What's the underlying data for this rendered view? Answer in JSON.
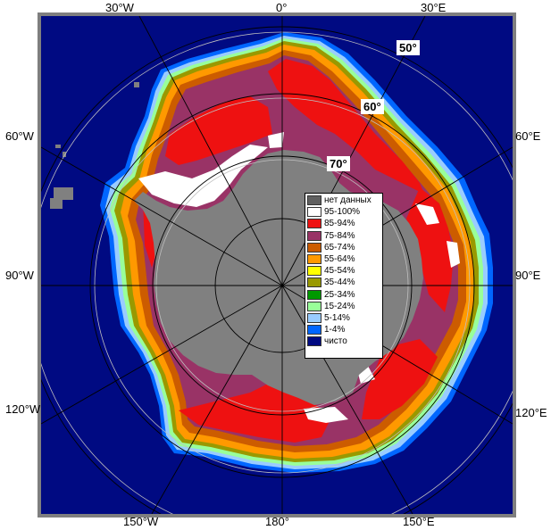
{
  "map": {
    "longitude_labels": {
      "top": [
        "30°W",
        "0°",
        "30°E"
      ],
      "bottom": [
        "150°W",
        "180°",
        "150°E"
      ],
      "left": [
        "60°W",
        "90°W",
        "120°W"
      ],
      "right": [
        "60°E",
        "90°E",
        "120°E"
      ]
    },
    "latitude_labels": [
      "50°",
      "60°",
      "70°"
    ],
    "colors": {
      "ocean": "#000a82",
      "land": "#808080",
      "frame": "#7f7f7f",
      "grid": "#bfbfbf"
    }
  },
  "legend": {
    "items": [
      {
        "label": "нет данных",
        "color": "#606060"
      },
      {
        "label": "95-100%",
        "color": "#ffffff"
      },
      {
        "label": "85-94%",
        "color": "#ee1111"
      },
      {
        "label": "75-84%",
        "color": "#993366"
      },
      {
        "label": "65-74%",
        "color": "#cc5c00"
      },
      {
        "label": "55-64%",
        "color": "#ff9900"
      },
      {
        "label": "45-54%",
        "color": "#ffff00"
      },
      {
        "label": "35-44%",
        "color": "#999900"
      },
      {
        "label": "25-34%",
        "color": "#009900"
      },
      {
        "label": "15-24%",
        "color": "#99ff99"
      },
      {
        "label": "5-14%",
        "color": "#99ccff"
      },
      {
        "label": "1-4%",
        "color": "#0066ff"
      },
      {
        "label": "чисто",
        "color": "#000a82"
      }
    ]
  }
}
